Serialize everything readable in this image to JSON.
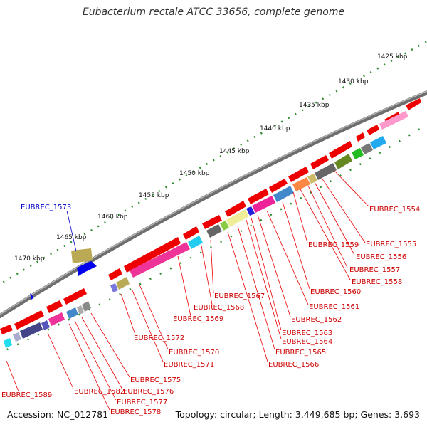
{
  "title": "Eubacterium rectale ATCC 33656, complete genome",
  "accession": "Accession: NC_012781",
  "topology": "Topology: circular; Length: 3,449,685 bp; Genes: 3,693",
  "ticks": [
    "1425 kbp",
    "1430 kbp",
    "1435 kbp",
    "1440 kbp",
    "1445 kbp",
    "1450 kbp",
    "1455 kbp",
    "1460 kbp",
    "1465 kbp",
    "1470 kbp"
  ],
  "labels": [
    {
      "text": "EUBREC_1573",
      "color": "#0000cc"
    },
    {
      "text": "EUBREC_1554",
      "color": "#cc0000"
    },
    {
      "text": "EUBREC_1555",
      "color": "#cc0000"
    },
    {
      "text": "EUBREC_1556",
      "color": "#cc0000"
    },
    {
      "text": "EUBREC_1557",
      "color": "#cc0000"
    },
    {
      "text": "EUBREC_1558",
      "color": "#cc0000"
    },
    {
      "text": "EUBREC_1559",
      "color": "#cc0000"
    },
    {
      "text": "EUBREC_1560",
      "color": "#cc0000"
    },
    {
      "text": "EUBREC_1561",
      "color": "#cc0000"
    },
    {
      "text": "EUBREC_1562",
      "color": "#cc0000"
    },
    {
      "text": "EUBREC_1563",
      "color": "#cc0000"
    },
    {
      "text": "EUBREC_1564",
      "color": "#cc0000"
    },
    {
      "text": "EUBREC_1565",
      "color": "#cc0000"
    },
    {
      "text": "EUBREC_1566",
      "color": "#cc0000"
    },
    {
      "text": "EUBREC_1567",
      "color": "#cc0000"
    },
    {
      "text": "EUBREC_1568",
      "color": "#cc0000"
    },
    {
      "text": "EUBREC_1569",
      "color": "#cc0000"
    },
    {
      "text": "EUBREC_1570",
      "color": "#cc0000"
    },
    {
      "text": "EUBREC_1571",
      "color": "#cc0000"
    },
    {
      "text": "EUBREC_1572",
      "color": "#cc0000"
    },
    {
      "text": "EUBREC_1575",
      "color": "#cc0000"
    },
    {
      "text": "EUBREC_1576",
      "color": "#cc0000"
    },
    {
      "text": "EUBREC_1577",
      "color": "#cc0000"
    },
    {
      "text": "EUBREC_1578",
      "color": "#cc0000"
    },
    {
      "text": "EUBREC_1582",
      "color": "#cc0000"
    },
    {
      "text": "EUBREC_1589",
      "color": "#cc0000"
    }
  ]
}
